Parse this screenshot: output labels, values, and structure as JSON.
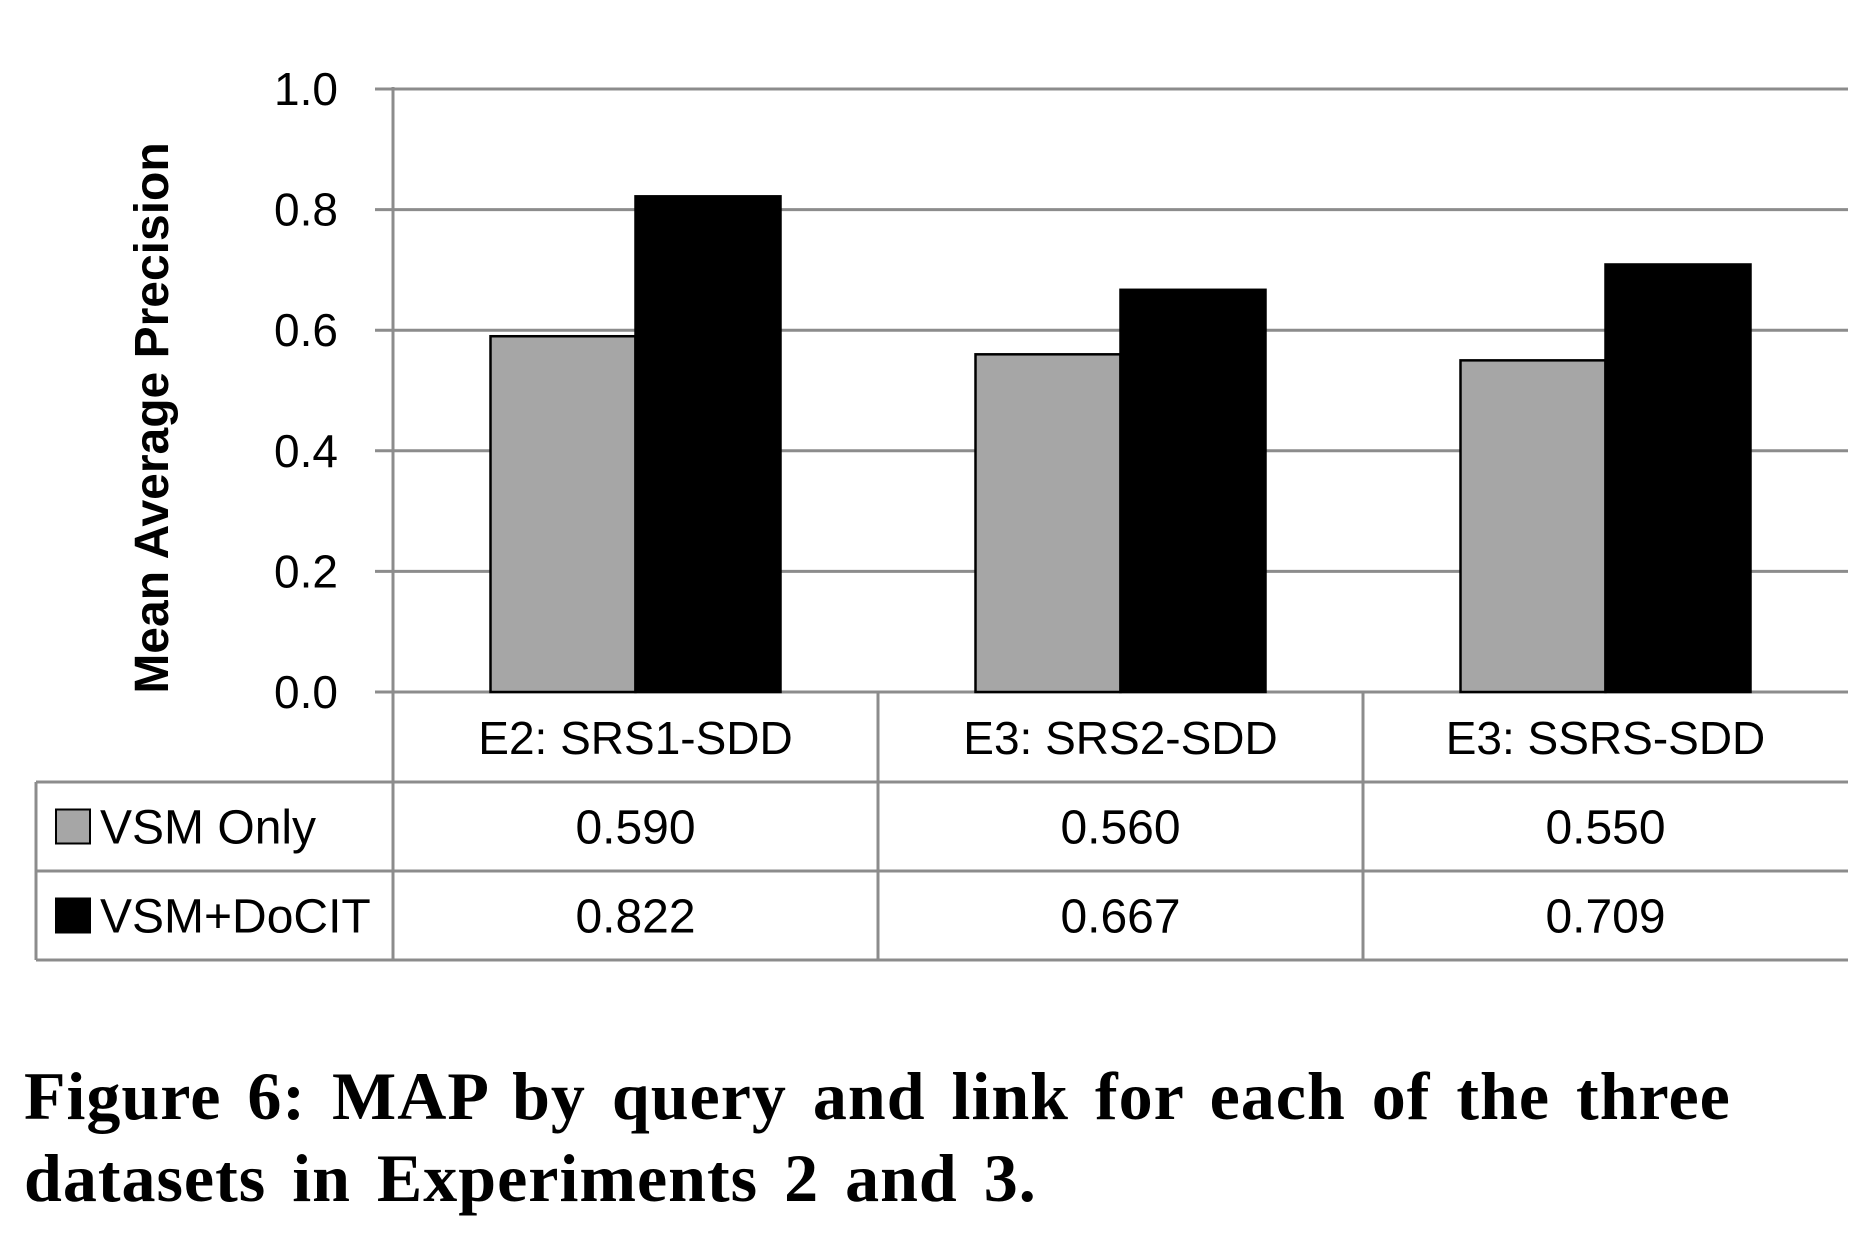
{
  "chart_data": {
    "type": "bar",
    "ylabel": "Mean Average Precision",
    "ylim": [
      0,
      1.0
    ],
    "yticks": [
      "0.0",
      "0.2",
      "0.4",
      "0.6",
      "0.8",
      "1.0"
    ],
    "categories": [
      "E2: SRS1-SDD",
      "E3: SRS2-SDD",
      "E3: SSRS-SDD"
    ],
    "grid": true,
    "legend": "data-table",
    "series": [
      {
        "name": "VSM Only",
        "color": "#a6a6a6",
        "values": [
          0.59,
          0.56,
          0.55
        ],
        "labels": [
          "0.590",
          "0.560",
          "0.550"
        ]
      },
      {
        "name": "VSM+DoCIT",
        "color": "#000000",
        "values": [
          0.822,
          0.667,
          0.709
        ],
        "labels": [
          "0.822",
          "0.667",
          "0.709"
        ]
      }
    ]
  },
  "caption": "Figure 6: MAP by query and link for each of the three datasets in Experiments 2 and 3."
}
